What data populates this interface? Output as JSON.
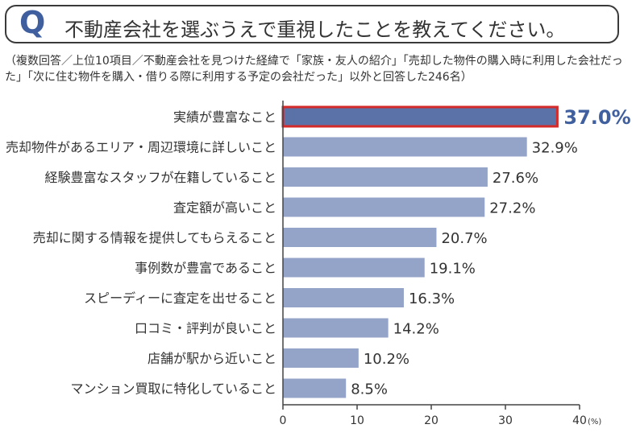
{
  "question": {
    "letter": "Q",
    "text": "不動産会社を選ぶうえで重視したことを教えてください。"
  },
  "note": "（複数回答／上位10項目／不動産会社を見つけた経緯で「家族・友人の紹介」「売却した物件の購入時に利用した会社だった」「次に住む物件を購入・借りる際に利用する予定の会社だった」以外と回答した246名）",
  "chart_data": {
    "type": "bar",
    "orientation": "horizontal",
    "categories": [
      "実績が豊富なこと",
      "売却物件があるエリア・周辺環境に詳しいこと",
      "経験豊富なスタッフが在籍していること",
      "査定額が高いこと",
      "売却に関する情報を提供してもらえること",
      "事例数が豊富であること",
      "スピーディーに査定を出せること",
      "口コミ・評判が良いこと",
      "店舗が駅から近いこと",
      "マンション買取に特化していること"
    ],
    "values": [
      37.0,
      32.9,
      27.6,
      27.2,
      20.7,
      19.1,
      16.3,
      14.2,
      10.2,
      8.5
    ],
    "value_labels": [
      "37.0%",
      "32.9%",
      "27.6%",
      "27.2%",
      "20.7%",
      "19.1%",
      "16.3%",
      "14.2%",
      "10.2%",
      "8.5%"
    ],
    "highlight_index": 0,
    "xlim": [
      0,
      40
    ],
    "xticks": [
      "0",
      "10",
      "20",
      "30",
      "40"
    ],
    "x_unit": "(%)",
    "colors": {
      "bar": "#94a3c8",
      "highlight_bar": "#5b72a8",
      "highlight_border": "#d42a2a",
      "highlight_label": "#3f5f9e",
      "axis": "#444444"
    }
  }
}
